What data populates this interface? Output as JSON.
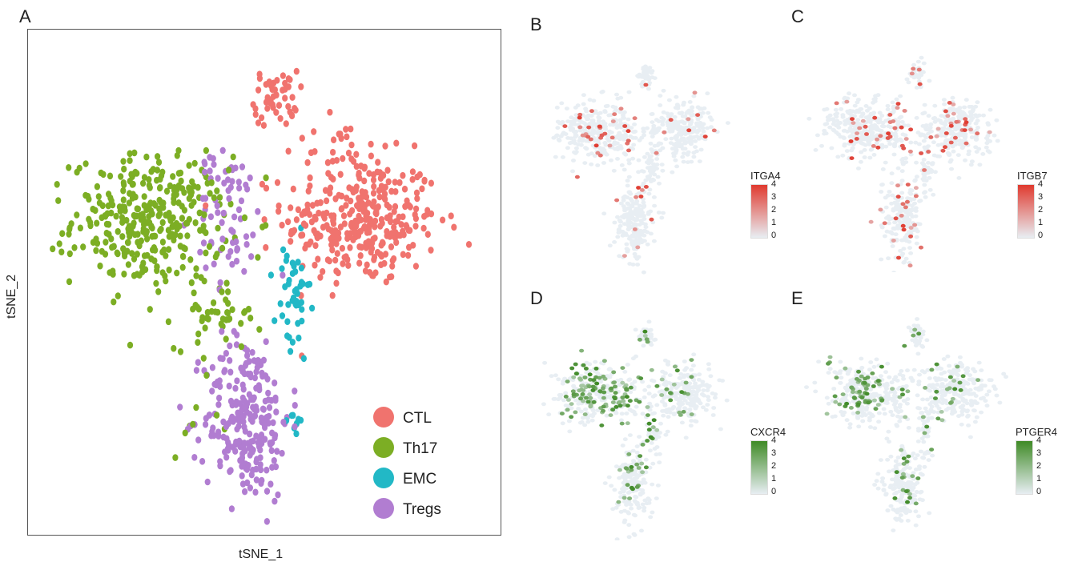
{
  "panel_labels": {
    "a": "A",
    "b": "B",
    "c": "C",
    "d": "D",
    "e": "E"
  },
  "chart_data": [
    {
      "panel": "A",
      "type": "scatter",
      "xlabel": "tSNE_1",
      "ylabel": "tSNE_2",
      "xlim": [
        -40,
        40
      ],
      "ylim": [
        -40,
        40
      ],
      "grid": false,
      "legend_position": "bottom-right",
      "series": [
        {
          "name": "CTL",
          "color": "#F0736E",
          "clusters": [
            {
              "cx": 17,
              "cy": 10,
              "sx": 9,
              "sy": 7,
              "n": 330
            },
            {
              "cx": 2,
              "cy": 30,
              "sx": 2.5,
              "sy": 3,
              "n": 50
            },
            {
              "cx": 12,
              "cy": 22,
              "sx": 6,
              "sy": 3,
              "n": 25
            }
          ]
        },
        {
          "name": "Th17",
          "color": "#7CAE24",
          "clusters": [
            {
              "cx": -20,
              "cy": 10,
              "sx": 9,
              "sy": 7,
              "n": 330
            },
            {
              "cx": -8,
              "cy": -5,
              "sx": 5,
              "sy": 4,
              "n": 45
            },
            {
              "cx": -12,
              "cy": -22,
              "sx": 3,
              "sy": 4,
              "n": 8
            }
          ]
        },
        {
          "name": "EMC",
          "color": "#22B8C6",
          "clusters": [
            {
              "cx": 5,
              "cy": -4,
              "sx": 2,
              "sy": 7,
              "n": 45
            },
            {
              "cx": 5,
              "cy": -22,
              "sx": 1.5,
              "sy": 2,
              "n": 8
            }
          ]
        },
        {
          "name": "Tregs",
          "color": "#B17DD1",
          "clusters": [
            {
              "cx": -3,
              "cy": -22,
              "sx": 5,
              "sy": 9,
              "n": 250
            },
            {
              "cx": -6,
              "cy": 10,
              "sx": 4,
              "sy": 7,
              "n": 60
            },
            {
              "cx": -8,
              "cy": 20,
              "sx": 2,
              "sy": 2,
              "n": 10
            }
          ]
        }
      ]
    },
    {
      "panel": "B",
      "type": "scatter",
      "gene": "ITGA4",
      "color_scale": [
        "#E8EEF3",
        "#E03A2F"
      ],
      "colorbar_ticks": [
        "4",
        "3",
        "2",
        "1",
        "0"
      ]
    },
    {
      "panel": "C",
      "type": "scatter",
      "gene": "ITGB7",
      "color_scale": [
        "#E8EEF3",
        "#E03A2F"
      ],
      "colorbar_ticks": [
        "4",
        "3",
        "2",
        "1",
        "0"
      ]
    },
    {
      "panel": "D",
      "type": "scatter",
      "gene": "CXCR4",
      "color_scale": [
        "#E8EEF3",
        "#3F8A26"
      ],
      "colorbar_ticks": [
        "4",
        "3",
        "2",
        "1",
        "0"
      ]
    },
    {
      "panel": "E",
      "type": "scatter",
      "gene": "PTGER4",
      "color_scale": [
        "#E8EEF3",
        "#3F8A26"
      ],
      "colorbar_ticks": [
        "4",
        "3",
        "2",
        "1",
        "0"
      ]
    }
  ]
}
